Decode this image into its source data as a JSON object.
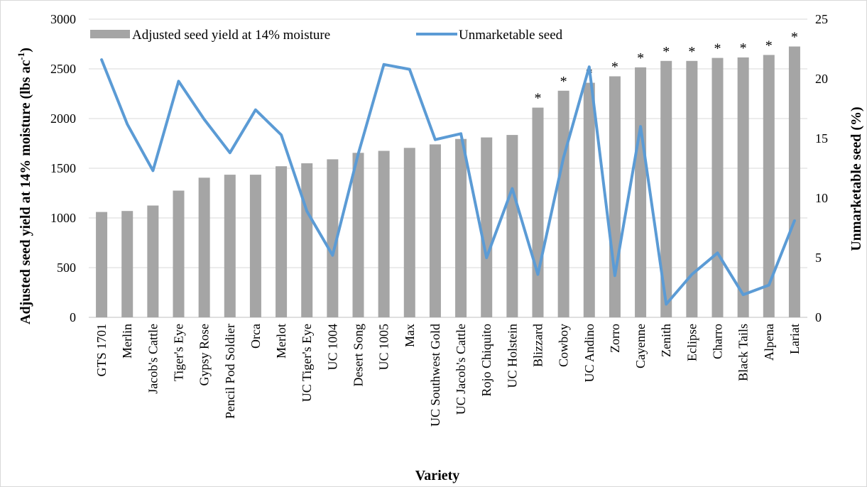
{
  "chart_data": {
    "type": "bar",
    "combo": "bar-line-dual-axis",
    "xlabel": "Variety",
    "ylabel": "Adjusted seed yield at 14% moisture (lbs ac",
    "ylabel_superscript": "-1",
    "ylabel_suffix": ")",
    "y2label": "Unmarketable seed (%)",
    "ylim": [
      0,
      3000
    ],
    "y2lim": [
      0,
      25
    ],
    "yticks": [
      "0",
      "500",
      "1000",
      "1500",
      "2000",
      "2500",
      "3000"
    ],
    "y2ticks": [
      "0",
      "5",
      "10",
      "15",
      "20",
      "25"
    ],
    "grid": true,
    "legend_position": "top",
    "categories": [
      "GTS 1701",
      "Merlin",
      "Jacob's Cattle",
      "Tiger's Eye",
      "Gypsy Rose",
      "Pencil Pod Soldier",
      "Orca",
      "Merlot",
      "UC Tiger's Eye",
      "UC 1004",
      "Desert Song",
      "UC 1005",
      "Max",
      "UC Southwest Gold",
      "UC Jacob's Cattle",
      "Rojo Chiquito",
      "UC Holstein",
      "Blizzard",
      "Cowboy",
      "UC Andino",
      "Zorro",
      "Cayenne",
      "Zenith",
      "Eclipse",
      "Charro",
      "Black Tails",
      "Alpena",
      "Lariat"
    ],
    "series": [
      {
        "name": "Adjusted seed yield at 14% moisture",
        "type": "bar",
        "axis": "left",
        "color": "#a5a5a5",
        "values": [
          1060,
          1070,
          1125,
          1275,
          1405,
          1435,
          1435,
          1520,
          1550,
          1590,
          1655,
          1675,
          1705,
          1740,
          1795,
          1810,
          1835,
          2110,
          2280,
          2360,
          2425,
          2515,
          2580,
          2580,
          2610,
          2615,
          2640,
          2725
        ]
      },
      {
        "name": "Unmarketable seed",
        "type": "line",
        "axis": "right",
        "color": "#5b9bd5",
        "values": [
          21.6,
          16.2,
          12.3,
          19.8,
          16.6,
          13.8,
          17.4,
          15.3,
          8.9,
          5.2,
          13.7,
          21.2,
          20.8,
          14.9,
          15.4,
          5.0,
          10.8,
          3.6,
          13.4,
          21.0,
          3.5,
          16.0,
          1.1,
          3.6,
          5.4,
          1.9,
          2.7,
          8.1
        ]
      }
    ],
    "significance_marker": "*",
    "significant": [
      "Blizzard",
      "Cowboy",
      "UC Andino",
      "Zorro",
      "Cayenne",
      "Zenith",
      "Eclipse",
      "Charro",
      "Black Tails",
      "Alpena",
      "Lariat"
    ]
  }
}
